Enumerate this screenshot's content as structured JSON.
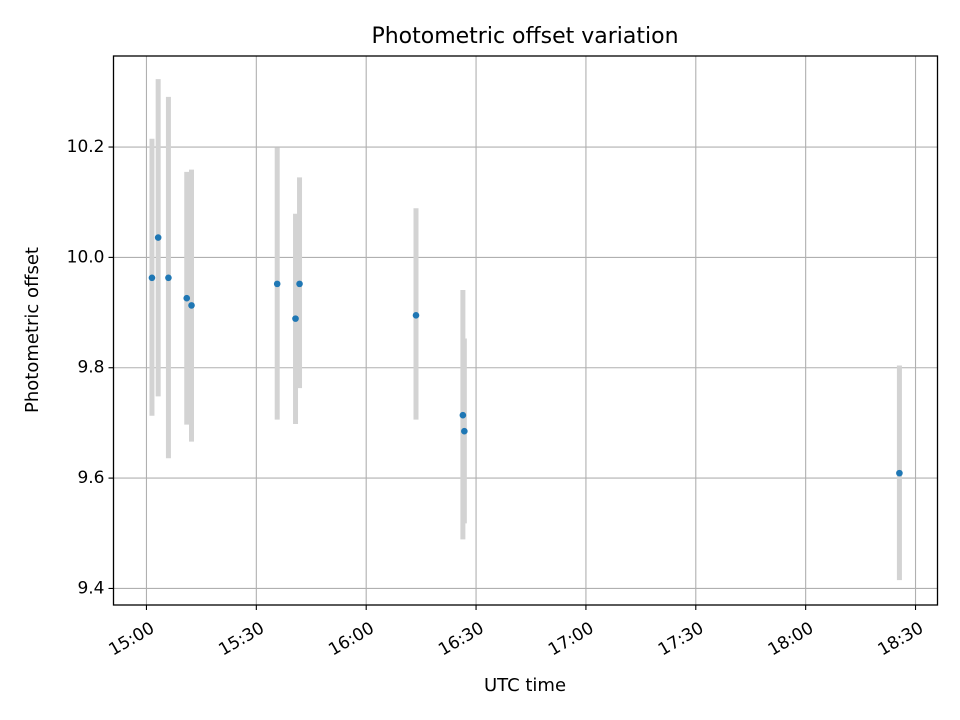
{
  "chart_data": {
    "type": "scatter",
    "title": "Photometric offset variation",
    "xlabel": "UTC time",
    "ylabel": "Photometric offset",
    "xlim": [
      "14:51",
      "18:36"
    ],
    "ylim": [
      9.37,
      10.365
    ],
    "x_ticks": [
      "15:00",
      "15:30",
      "16:00",
      "16:30",
      "17:00",
      "17:30",
      "18:00",
      "18:30"
    ],
    "y_ticks": [
      "9.4",
      "9.6",
      "9.8",
      "10.0",
      "10.2"
    ],
    "grid": true,
    "point_color": "#1f77b4",
    "errorbar_color": "#d3d3d3",
    "points": [
      {
        "x": "15:01.5",
        "y": 9.963,
        "y_low": 9.713,
        "y_high": 10.215
      },
      {
        "x": "15:03.2",
        "y": 10.036,
        "y_low": 9.748,
        "y_high": 10.323
      },
      {
        "x": "15:06.0",
        "y": 9.963,
        "y_low": 9.636,
        "y_high": 10.291
      },
      {
        "x": "15:11.0",
        "y": 9.926,
        "y_low": 9.697,
        "y_high": 10.155
      },
      {
        "x": "15:12.3",
        "y": 9.913,
        "y_low": 9.666,
        "y_high": 10.159
      },
      {
        "x": "15:35.7",
        "y": 9.952,
        "y_low": 9.706,
        "y_high": 10.199
      },
      {
        "x": "15:40.7",
        "y": 9.889,
        "y_low": 9.698,
        "y_high": 10.079
      },
      {
        "x": "15:41.8",
        "y": 9.952,
        "y_low": 9.763,
        "y_high": 10.145
      },
      {
        "x": "16:13.6",
        "y": 9.895,
        "y_low": 9.706,
        "y_high": 10.089
      },
      {
        "x": "16:26.4",
        "y": 9.714,
        "y_low": 9.489,
        "y_high": 9.941
      },
      {
        "x": "16:26.8",
        "y": 9.685,
        "y_low": 9.518,
        "y_high": 9.853
      },
      {
        "x": "18:25.6",
        "y": 9.609,
        "y_low": 9.415,
        "y_high": 9.804
      }
    ]
  }
}
